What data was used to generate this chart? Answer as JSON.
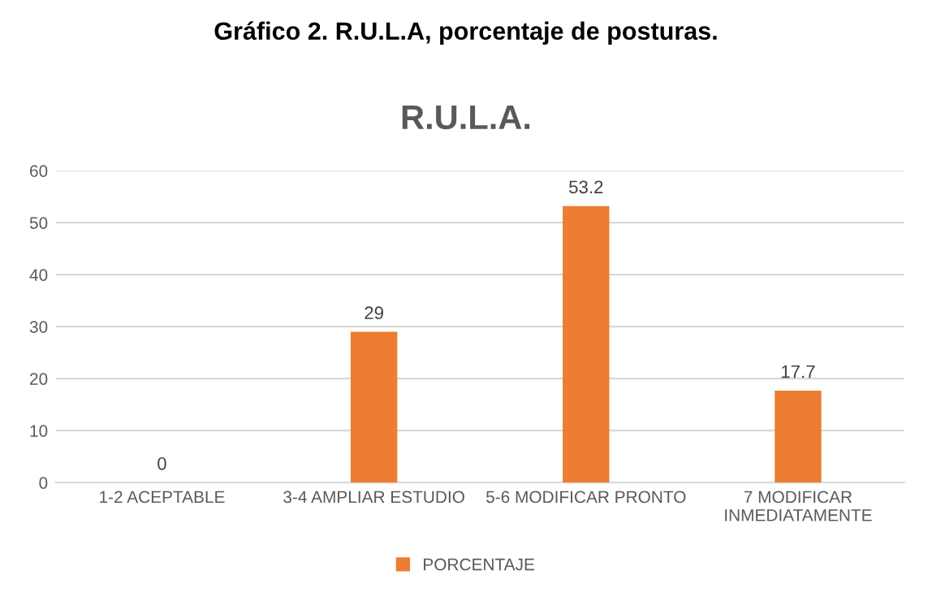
{
  "chart_data": {
    "type": "bar",
    "title": "Gráfico 2. R.U.L.A, porcentaje de posturas.",
    "subtitle": "R.U.L.A.",
    "categories": [
      "1-2 ACEPTABLE",
      "3-4 AMPLIAR ESTUDIO",
      "5-6 MODIFICAR PRONTO",
      "7 MODIFICAR\nINMEDIATAMENTE"
    ],
    "series": [
      {
        "name": "PORCENTAJE",
        "color": "#ed7d31",
        "values": [
          0,
          29,
          53.2,
          17.7
        ]
      }
    ],
    "ylim": [
      0,
      60
    ],
    "yticks": [
      0,
      10,
      20,
      30,
      40,
      50,
      60
    ],
    "grid": "y",
    "legend": "bottom",
    "data_labels": true
  }
}
